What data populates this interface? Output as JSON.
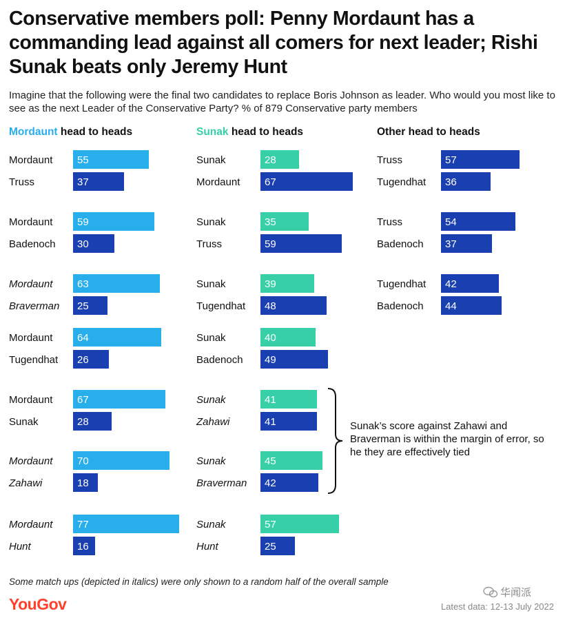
{
  "header": {
    "title": "Conservative members poll: Penny Mordaunt has a commanding lead against all comers for next leader; Rishi Sunak beats only Jeremy Hunt",
    "subtitle": "Imagine that the following were the final two candidates to replace Boris Johnson as leader. Who would you most like to see as the next Leader of the Conservative Party? % of 879 Conservative party members"
  },
  "colors": {
    "mordaunt_light": "#28aeea",
    "sunak_light": "#37cfa8",
    "opponent_dark": "#1a3fb0",
    "other_dark": "#1a3fb0",
    "annotation_bracket": "#111111",
    "brand": "#ff412c"
  },
  "columns": [
    {
      "highlight": "Mordaunt",
      "rest": " head to heads",
      "highlight_color": "#28aeea"
    },
    {
      "highlight": "Sunak",
      "rest": " head to heads",
      "highlight_color": "#37cfa8"
    },
    {
      "highlight": "",
      "rest": "Other head to heads",
      "highlight_color": "#111111"
    }
  ],
  "chart_data": {
    "type": "bar",
    "orientation": "horizontal",
    "unit": "%",
    "xlim": [
      0,
      100
    ],
    "panels": [
      {
        "column": "Mordaunt head to heads",
        "matchups": [
          {
            "italic": false,
            "rows": [
              {
                "name": "Mordaunt",
                "value": 55,
                "color": "light"
              },
              {
                "name": "Truss",
                "value": 37,
                "color": "dark"
              }
            ]
          },
          {
            "italic": false,
            "rows": [
              {
                "name": "Mordaunt",
                "value": 59,
                "color": "light"
              },
              {
                "name": "Badenoch",
                "value": 30,
                "color": "dark"
              }
            ]
          },
          {
            "italic": true,
            "rows": [
              {
                "name": "Mordaunt",
                "value": 63,
                "color": "light"
              },
              {
                "name": "Braverman",
                "value": 25,
                "color": "dark"
              }
            ]
          },
          {
            "italic": false,
            "rows": [
              {
                "name": "Mordaunt",
                "value": 64,
                "color": "light"
              },
              {
                "name": "Tugendhat",
                "value": 26,
                "color": "dark"
              }
            ]
          },
          {
            "italic": false,
            "rows": [
              {
                "name": "Mordaunt",
                "value": 67,
                "color": "light"
              },
              {
                "name": "Sunak",
                "value": 28,
                "color": "dark"
              }
            ]
          },
          {
            "italic": true,
            "rows": [
              {
                "name": "Mordaunt",
                "value": 70,
                "color": "light"
              },
              {
                "name": "Zahawi",
                "value": 18,
                "color": "dark"
              }
            ]
          },
          {
            "italic": true,
            "rows": [
              {
                "name": "Mordaunt",
                "value": 77,
                "color": "light"
              },
              {
                "name": "Hunt",
                "value": 16,
                "color": "dark"
              }
            ]
          }
        ]
      },
      {
        "column": "Sunak head to heads",
        "matchups": [
          {
            "italic": false,
            "rows": [
              {
                "name": "Sunak",
                "value": 28,
                "color": "light"
              },
              {
                "name": "Mordaunt",
                "value": 67,
                "color": "dark"
              }
            ]
          },
          {
            "italic": false,
            "rows": [
              {
                "name": "Sunak",
                "value": 35,
                "color": "light"
              },
              {
                "name": "Truss",
                "value": 59,
                "color": "dark"
              }
            ]
          },
          {
            "italic": false,
            "rows": [
              {
                "name": "Sunak",
                "value": 39,
                "color": "light"
              },
              {
                "name": "Tugendhat",
                "value": 48,
                "color": "dark"
              }
            ]
          },
          {
            "italic": false,
            "rows": [
              {
                "name": "Sunak",
                "value": 40,
                "color": "light"
              },
              {
                "name": "Badenoch",
                "value": 49,
                "color": "dark"
              }
            ]
          },
          {
            "italic": true,
            "rows": [
              {
                "name": "Sunak",
                "value": 41,
                "color": "light"
              },
              {
                "name": "Zahawi",
                "value": 41,
                "color": "dark"
              }
            ]
          },
          {
            "italic": true,
            "rows": [
              {
                "name": "Sunak",
                "value": 45,
                "color": "light"
              },
              {
                "name": "Braverman",
                "value": 42,
                "color": "dark"
              }
            ]
          },
          {
            "italic": true,
            "rows": [
              {
                "name": "Sunak",
                "value": 57,
                "color": "light"
              },
              {
                "name": "Hunt",
                "value": 25,
                "color": "dark"
              }
            ]
          }
        ]
      },
      {
        "column": "Other head to heads",
        "matchups": [
          {
            "italic": false,
            "rows": [
              {
                "name": "Truss",
                "value": 57,
                "color": "dark"
              },
              {
                "name": "Tugendhat",
                "value": 36,
                "color": "dark"
              }
            ]
          },
          {
            "italic": false,
            "rows": [
              {
                "name": "Truss",
                "value": 54,
                "color": "dark"
              },
              {
                "name": "Badenoch",
                "value": 37,
                "color": "dark"
              }
            ]
          },
          {
            "italic": false,
            "rows": [
              {
                "name": "Tugendhat",
                "value": 42,
                "color": "dark"
              },
              {
                "name": "Badenoch",
                "value": 44,
                "color": "dark"
              }
            ]
          }
        ]
      }
    ],
    "annotations": [
      {
        "text": "Sunak’s score against Zahawi and Braverman is within the margin of error, so he they are effectively tied",
        "panel": 1,
        "matchups": [
          4,
          5
        ]
      }
    ]
  },
  "footer": {
    "note": "Some match ups (depicted in italics) were only shown to a random half of the overall sample",
    "logo": "YouGov",
    "latest": "Latest data: 12-13 July 2022",
    "watermark": "华闻派"
  }
}
